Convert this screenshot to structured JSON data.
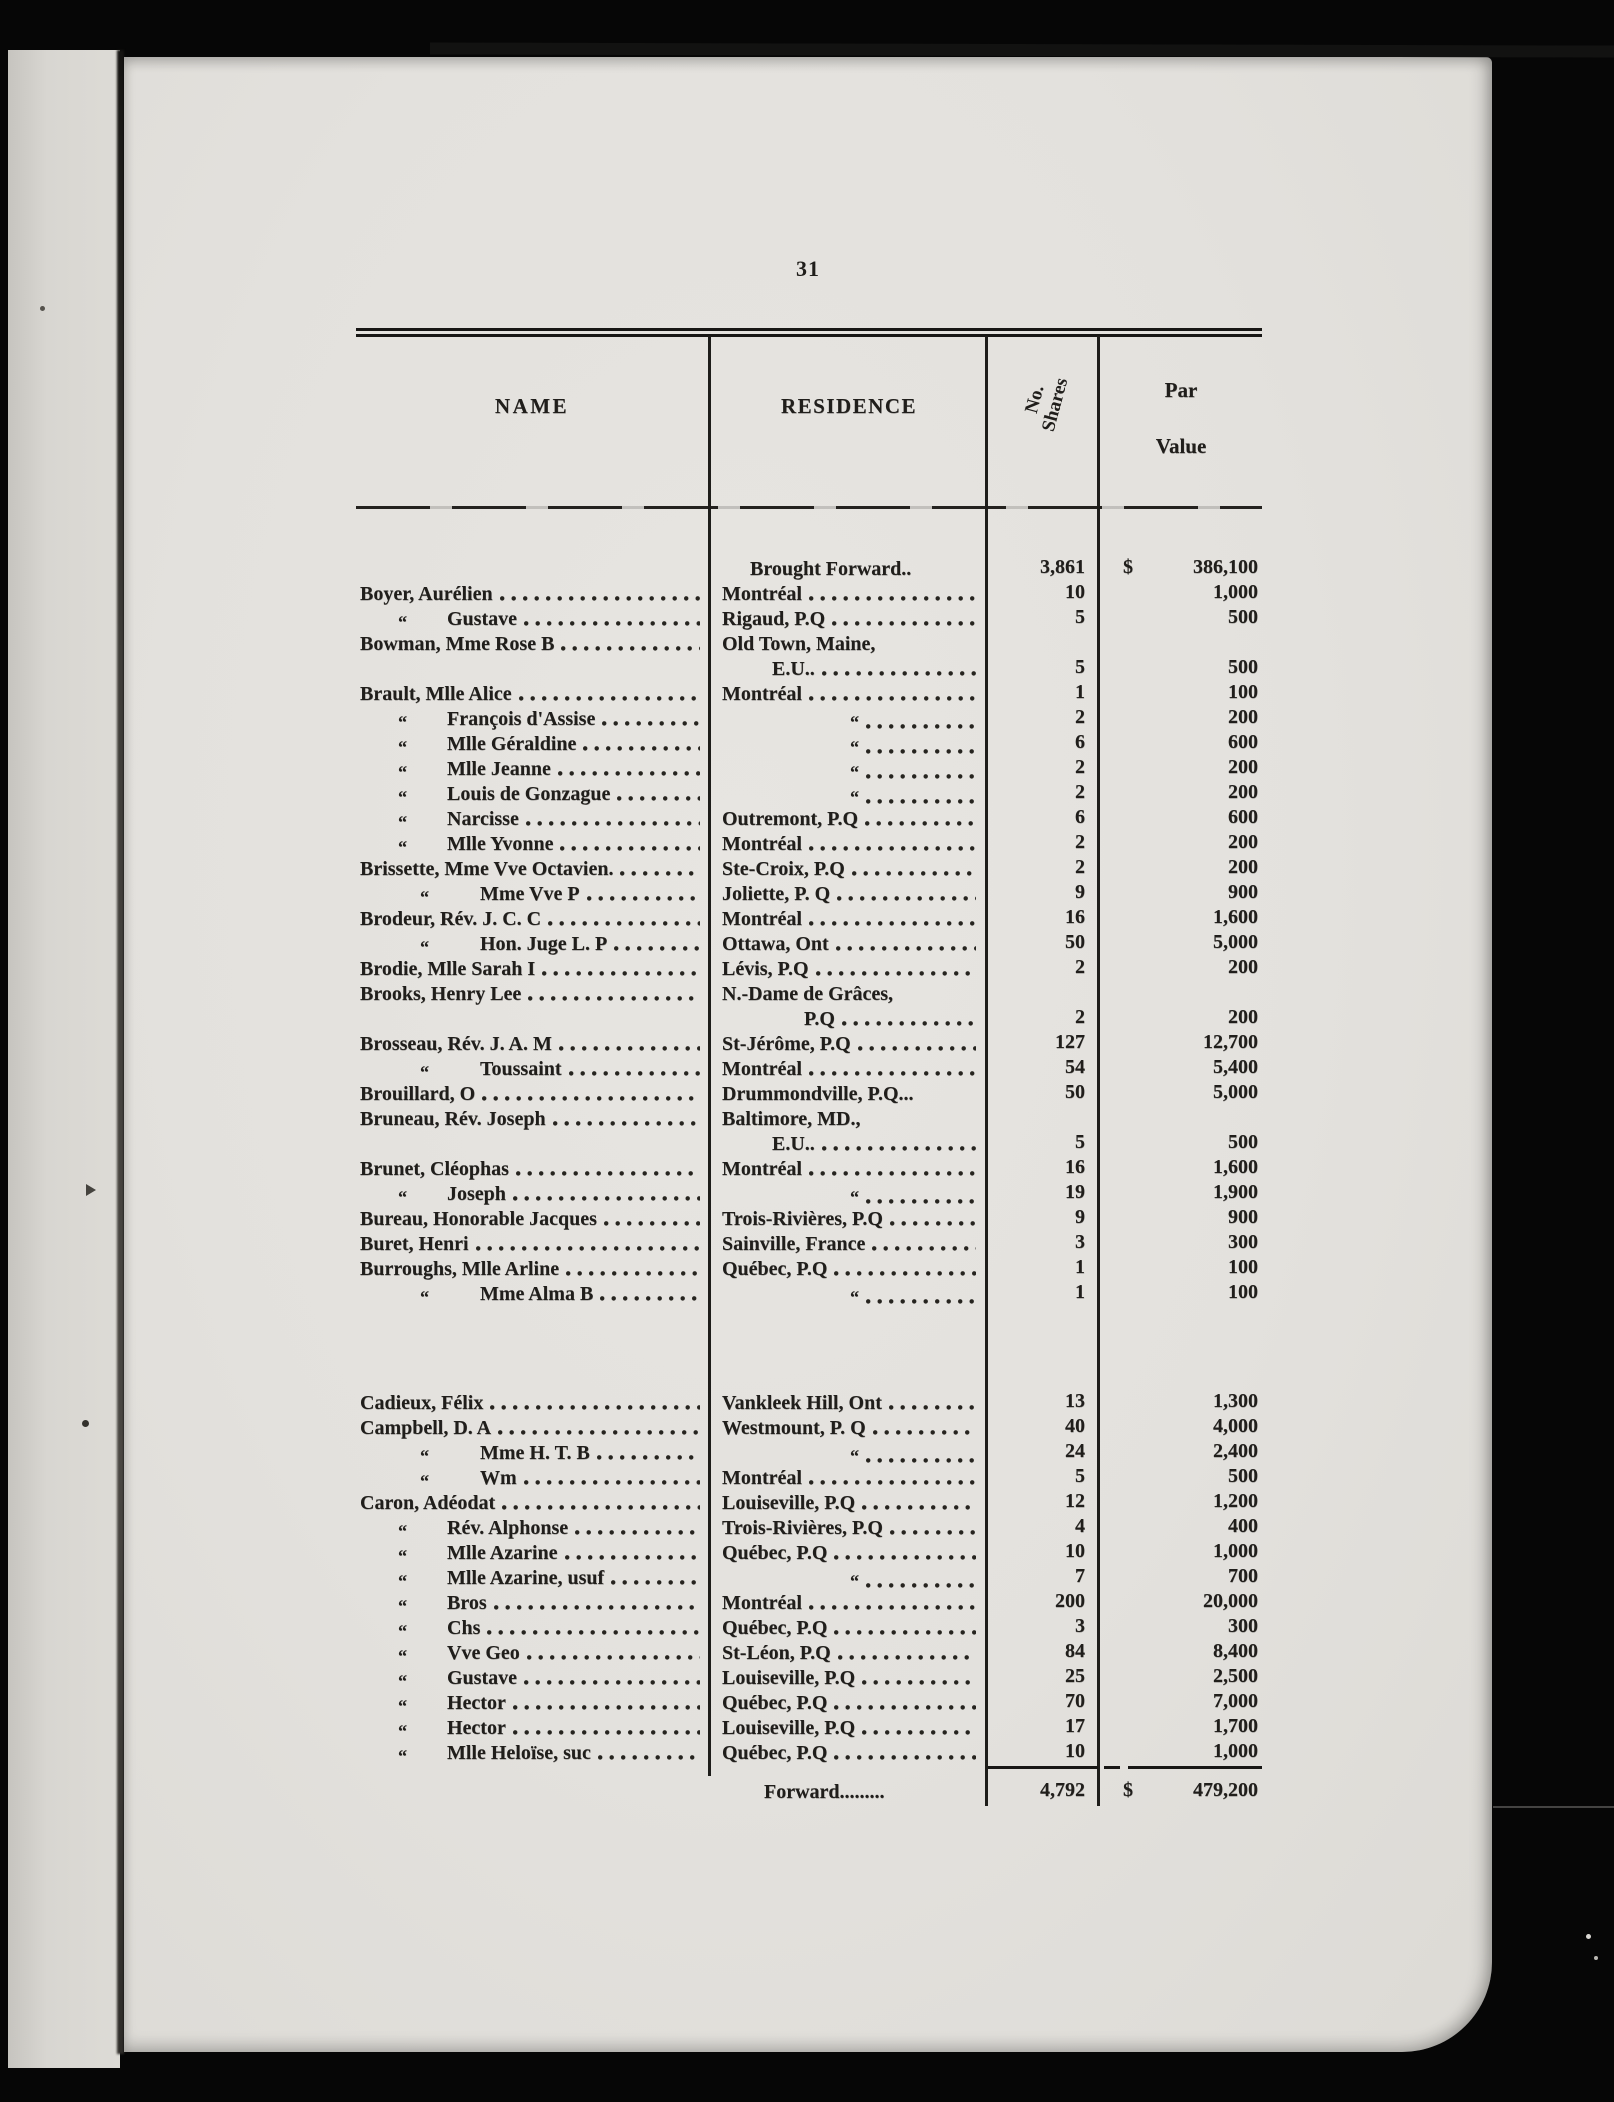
{
  "page": {
    "number": "31"
  },
  "table": {
    "ditto_mark": "“",
    "headers": {
      "name": "NAME",
      "residence": "RESIDENCE",
      "shares_line1": "No.",
      "shares_line2": "Shares",
      "par_line1": "Par",
      "par_line2": "Value"
    },
    "rows": [
      {
        "res_type": "bf",
        "residence": "Brought Forward..",
        "shares": "3,861",
        "dollar": "$",
        "value": "386,100"
      },
      {
        "name": "Boyer, Aurélien",
        "indent": "main",
        "residence": "Montréal",
        "shares": "10",
        "value": "1,000"
      },
      {
        "name": "Gustave",
        "indent": "sub",
        "residence": "Rigaud, P.Q",
        "shares": "5",
        "value": "500"
      },
      {
        "name": "Bowman, Mme Rose B",
        "indent": "main",
        "res_type": "plain",
        "residence": "Old Town, Maine,",
        "shares": "",
        "value": ""
      },
      {
        "res_type": "wrap",
        "residence": "E.U..",
        "res_indent": 50,
        "shares": "5",
        "value": "500"
      },
      {
        "name": "Brault, Mlle Alice",
        "indent": "main",
        "residence": "Montréal",
        "shares": "1",
        "value": "100"
      },
      {
        "name": "François d'Assise",
        "indent": "sub",
        "res_type": "ditto",
        "shares": "2",
        "value": "200"
      },
      {
        "name": "Mlle Géraldine",
        "indent": "sub",
        "res_type": "ditto",
        "shares": "6",
        "value": "600"
      },
      {
        "name": "Mlle Jeanne",
        "indent": "sub",
        "res_type": "ditto",
        "shares": "2",
        "value": "200"
      },
      {
        "name": "Louis de Gonzague",
        "indent": "sub",
        "res_type": "ditto",
        "shares": "2",
        "value": "200"
      },
      {
        "name": "Narcisse",
        "indent": "sub",
        "residence": "Outremont, P.Q",
        "shares": "6",
        "value": "600"
      },
      {
        "name": "Mlle Yvonne",
        "indent": "sub",
        "residence": "Montréal",
        "shares": "2",
        "value": "200"
      },
      {
        "name": "Brissette, Mme Vve Octavien.",
        "indent": "main",
        "residence": "Ste-Croix, P.Q",
        "shares": "2",
        "value": "200"
      },
      {
        "name": "Mme Vve P",
        "indent": "sub2",
        "residence": "Joliette, P. Q",
        "shares": "9",
        "value": "900"
      },
      {
        "name": "Brodeur, Rév. J. C. C",
        "indent": "main",
        "residence": "Montréal",
        "shares": "16",
        "value": "1,600"
      },
      {
        "name": "Hon. Juge L. P",
        "indent": "sub2",
        "residence": "Ottawa, Ont",
        "shares": "50",
        "value": "5,000"
      },
      {
        "name": "Brodie, Mlle Sarah I",
        "indent": "main",
        "residence": "Lévis, P.Q",
        "shares": "2",
        "value": "200"
      },
      {
        "name": "Brooks, Henry Lee",
        "indent": "main",
        "res_type": "plain",
        "residence": "N.-Dame de Grâces,",
        "shares": "",
        "value": ""
      },
      {
        "res_type": "wrap",
        "residence": "P.Q",
        "res_indent": 82,
        "shares": "2",
        "value": "200"
      },
      {
        "name": "Brosseau, Rév. J. A. M",
        "indent": "main",
        "residence": "St-Jérôme, P.Q",
        "shares": "127",
        "value": "12,700"
      },
      {
        "name": "Toussaint",
        "indent": "sub2",
        "residence": "Montréal",
        "shares": "54",
        "value": "5,400"
      },
      {
        "name": "Brouillard, O",
        "indent": "main",
        "residence": "Drummondville, P.Q...",
        "res_type": "plain",
        "shares": "50",
        "value": "5,000"
      },
      {
        "name": "Bruneau, Rév. Joseph",
        "indent": "main",
        "res_type": "plain",
        "residence": "Baltimore, MD.,",
        "shares": "",
        "value": ""
      },
      {
        "res_type": "wrap",
        "residence": "E.U..",
        "res_indent": 50,
        "shares": "5",
        "value": "500"
      },
      {
        "name": "Brunet, Cléophas",
        "indent": "main",
        "residence": "Montréal",
        "shares": "16",
        "value": "1,600"
      },
      {
        "name": "Joseph",
        "indent": "sub",
        "res_type": "ditto",
        "shares": "19",
        "value": "1,900"
      },
      {
        "name": "Bureau, Honorable Jacques",
        "indent": "main",
        "residence": "Trois-Rivières, P.Q",
        "shares": "9",
        "value": "900"
      },
      {
        "name": "Buret, Henri",
        "indent": "main",
        "residence": "Sainville, France",
        "shares": "3",
        "value": "300"
      },
      {
        "name": "Burroughs, Mlle Arline",
        "indent": "main",
        "residence": "Québec, P.Q",
        "shares": "1",
        "value": "100"
      },
      {
        "name": "Mme Alma B",
        "indent": "sub2",
        "res_type": "ditto",
        "shares": "1",
        "value": "100"
      },
      {
        "name": "Cadieux, Félix",
        "indent": "main",
        "residence": "Vankleek Hill, Ont",
        "shares": "13",
        "value": "1,300",
        "gap": 84
      },
      {
        "name": "Campbell, D. A",
        "indent": "main",
        "residence": "Westmount, P. Q",
        "shares": "40",
        "value": "4,000"
      },
      {
        "name": "Mme H. T. B",
        "indent": "sub2",
        "res_type": "ditto",
        "shares": "24",
        "value": "2,400"
      },
      {
        "name": "Wm",
        "indent": "sub2",
        "residence": "Montréal",
        "shares": "5",
        "value": "500"
      },
      {
        "name": "Caron, Adéodat",
        "indent": "main",
        "residence": "Louiseville, P.Q",
        "shares": "12",
        "value": "1,200"
      },
      {
        "name": "Rév. Alphonse",
        "indent": "sub",
        "residence": "Trois-Rivières, P.Q",
        "shares": "4",
        "value": "400"
      },
      {
        "name": "Mlle Azarine",
        "indent": "sub",
        "residence": "Québec, P.Q",
        "shares": "10",
        "value": "1,000"
      },
      {
        "name": "Mlle Azarine, usuf",
        "indent": "sub",
        "res_type": "ditto",
        "shares": "7",
        "value": "700"
      },
      {
        "name": "Bros",
        "indent": "sub",
        "residence": "Montréal",
        "shares": "200",
        "value": "20,000"
      },
      {
        "name": "Chs",
        "indent": "sub",
        "residence": "Québec, P.Q",
        "shares": "3",
        "value": "300"
      },
      {
        "name": "Vve Geo",
        "indent": "sub",
        "residence": "St-Léon, P.Q",
        "shares": "84",
        "value": "8,400"
      },
      {
        "name": "Gustave",
        "indent": "sub",
        "residence": "Louiseville, P.Q",
        "shares": "25",
        "value": "2,500"
      },
      {
        "name": "Hector",
        "indent": "sub",
        "residence": "Québec, P.Q",
        "shares": "70",
        "value": "7,000"
      },
      {
        "name": "Hector",
        "indent": "sub",
        "residence": "Louiseville, P.Q",
        "shares": "17",
        "value": "1,700"
      },
      {
        "name": "Mlle Heloïse, suc",
        "indent": "sub",
        "residence": "Québec, P.Q",
        "shares": "10",
        "value": "1,000"
      },
      {
        "res_type": "forward",
        "residence": "Forward.........",
        "shares": "4,792",
        "dollar": "$",
        "value": "479,200",
        "gap": 14
      }
    ]
  }
}
